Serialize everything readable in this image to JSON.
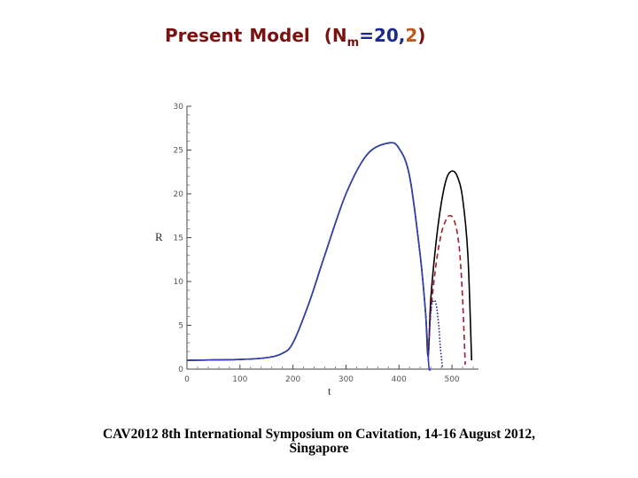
{
  "title": {
    "part1": "Present",
    "part2": "Model",
    "part3": "(N",
    "sub": "m",
    "part4": "=20,",
    "part5": "2",
    "part6": ")"
  },
  "footer": {
    "line1": "CAV2012 8th International Symposium on Cavitation, 14-16 August 2012,",
    "line2": "Singapore"
  },
  "chart_data": {
    "type": "line",
    "xlabel": "t",
    "ylabel": "R",
    "xlim": [
      0,
      550
    ],
    "ylim": [
      0,
      30
    ],
    "xticks": [
      "0",
      "100",
      "200",
      "300",
      "400",
      "500"
    ],
    "yticks": [
      "0",
      "5",
      "10",
      "15",
      "20",
      "25",
      "30"
    ],
    "grid": false,
    "series": [
      {
        "style": "solid",
        "color": "#000000",
        "x": [
          0,
          50,
          100,
          150,
          180,
          200,
          230,
          260,
          300,
          340,
          380,
          400,
          420,
          440,
          450,
          455,
          460,
          470,
          480,
          490,
          500,
          510,
          520,
          530,
          537
        ],
        "y": [
          1.0,
          1.05,
          1.1,
          1.3,
          1.8,
          3.0,
          7.5,
          13.0,
          20.0,
          24.5,
          25.8,
          25.2,
          22.0,
          13.0,
          6.5,
          1.5,
          8.0,
          14.5,
          19.0,
          21.8,
          22.6,
          22.0,
          19.5,
          13.0,
          1.0
        ]
      },
      {
        "style": "dashed",
        "color": "#a01e2e",
        "x": [
          455,
          460,
          470,
          480,
          490,
          495,
          500,
          505,
          510,
          515,
          520,
          525
        ],
        "y": [
          1.5,
          6.5,
          12.0,
          15.5,
          17.2,
          17.5,
          17.4,
          16.8,
          15.5,
          13.0,
          8.0,
          0.5
        ]
      },
      {
        "style": "dotted",
        "color": "#1a1a8c",
        "x": [
          455,
          460,
          465,
          470,
          475,
          478,
          482
        ],
        "y": [
          1.0,
          6.5,
          7.8,
          7.4,
          5.0,
          2.5,
          0.2
        ]
      },
      {
        "style": "solid",
        "color": "#3040b0",
        "x": [
          0,
          50,
          100,
          150,
          180,
          200,
          230,
          260,
          300,
          340,
          380,
          400,
          420,
          440,
          450,
          455,
          457,
          460
        ],
        "y": [
          1.0,
          1.05,
          1.1,
          1.3,
          1.8,
          3.0,
          7.5,
          13.0,
          20.0,
          24.5,
          25.8,
          25.2,
          22.0,
          13.0,
          6.5,
          1.5,
          0.0,
          0.0
        ]
      }
    ]
  }
}
